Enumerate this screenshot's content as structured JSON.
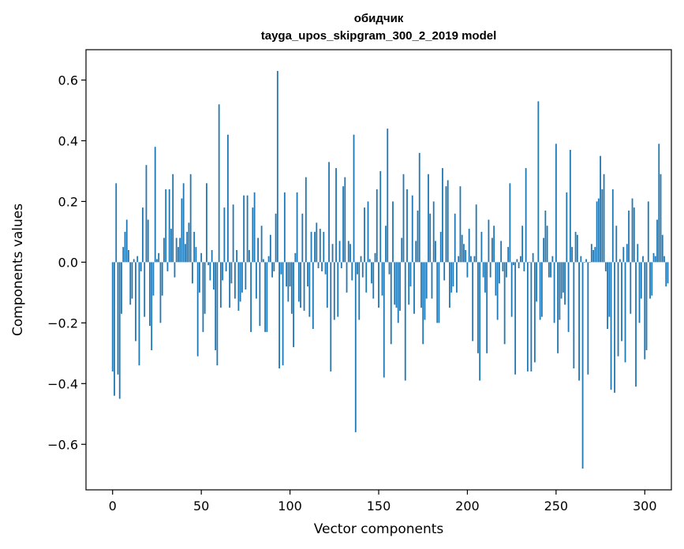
{
  "chart_data": {
    "type": "bar",
    "title": "обидчик",
    "subtitle": "tayga_upos_skipgram_300_2_2019 model",
    "xlabel": "Vector components",
    "ylabel": "Components values",
    "xlim": [
      -15,
      315
    ],
    "ylim": [
      -0.75,
      0.7
    ],
    "xticks": [
      0,
      50,
      100,
      150,
      200,
      250,
      300
    ],
    "xtick_labels": [
      "0",
      "50",
      "100",
      "150",
      "200",
      "250",
      "300"
    ],
    "yticks": [
      -0.6,
      -0.4,
      -0.2,
      0.0,
      0.2,
      0.4,
      0.6
    ],
    "ytick_labels": [
      "−0.6",
      "−0.4",
      "−0.2",
      "0.0",
      "0.2",
      "0.4",
      "0.6"
    ],
    "grid": false,
    "color": "#1f77b4",
    "x_start": 0,
    "values": [
      -0.36,
      -0.44,
      0.26,
      -0.37,
      -0.45,
      -0.17,
      0.05,
      0.1,
      0.14,
      0.04,
      -0.14,
      -0.12,
      0.01,
      -0.26,
      0.02,
      -0.34,
      -0.03,
      0.18,
      -0.18,
      0.32,
      0.14,
      -0.21,
      -0.29,
      -0.11,
      0.38,
      0.01,
      0.03,
      -0.2,
      -0.11,
      0.08,
      0.24,
      -0.03,
      0.24,
      0.11,
      0.29,
      -0.05,
      0.08,
      0.05,
      0.08,
      0.21,
      0.26,
      0.06,
      0.1,
      0.13,
      0.29,
      -0.07,
      0.1,
      0.05,
      -0.31,
      -0.1,
      0.03,
      -0.23,
      -0.17,
      0.26,
      -0.01,
      -0.06,
      0.04,
      -0.09,
      -0.29,
      -0.34,
      0.52,
      -0.15,
      -0.06,
      0.18,
      -0.03,
      0.42,
      -0.15,
      -0.07,
      0.19,
      -0.12,
      0.04,
      -0.16,
      -0.13,
      -0.1,
      0.22,
      -0.09,
      0.22,
      0.04,
      -0.23,
      0.18,
      0.23,
      -0.12,
      0.08,
      -0.21,
      0.12,
      0.01,
      -0.23,
      -0.23,
      0.02,
      0.09,
      -0.05,
      -0.03,
      0.16,
      0.63,
      -0.35,
      -0.04,
      -0.34,
      0.23,
      -0.08,
      -0.13,
      -0.08,
      -0.17,
      -0.28,
      0.03,
      0.23,
      -0.13,
      -0.15,
      0.16,
      -0.16,
      0.28,
      -0.08,
      -0.18,
      0.1,
      -0.22,
      0.1,
      0.13,
      -0.02,
      0.11,
      -0.03,
      0.1,
      -0.04,
      -0.15,
      0.33,
      -0.36,
      0.06,
      -0.19,
      0.31,
      -0.18,
      0.07,
      -0.02,
      0.25,
      0.28,
      -0.1,
      0.07,
      0.06,
      -0.06,
      0.42,
      -0.56,
      -0.04,
      -0.19,
      0.02,
      -0.05,
      0.18,
      -0.1,
      0.2,
      0.01,
      -0.07,
      -0.12,
      0.03,
      0.24,
      -0.15,
      0.3,
      -0.11,
      -0.38,
      0.12,
      0.44,
      -0.04,
      -0.27,
      0.2,
      -0.14,
      -0.15,
      -0.2,
      -0.16,
      0.08,
      0.29,
      -0.39,
      0.24,
      -0.14,
      -0.08,
      0.22,
      -0.17,
      0.07,
      0.17,
      0.36,
      -0.15,
      -0.27,
      -0.19,
      -0.12,
      0.29,
      0.16,
      -0.12,
      0.2,
      0.07,
      -0.2,
      -0.2,
      0.1,
      0.31,
      -0.06,
      0.25,
      0.27,
      -0.15,
      -0.1,
      -0.08,
      0.16,
      -0.1,
      0.02,
      0.25,
      0.09,
      0.06,
      0.04,
      -0.05,
      0.11,
      0.02,
      -0.26,
      0.02,
      0.19,
      -0.3,
      -0.39,
      0.1,
      -0.05,
      -0.1,
      -0.3,
      0.14,
      -0.05,
      0.08,
      0.12,
      -0.11,
      -0.19,
      -0.07,
      0.07,
      -0.03,
      -0.27,
      -0.05,
      0.05,
      0.26,
      -0.18,
      -0.01,
      -0.37,
      0.01,
      -0.02,
      0.02,
      0.12,
      -0.03,
      0.31,
      -0.36,
      0.0,
      -0.36,
      0.03,
      -0.33,
      -0.13,
      0.53,
      -0.19,
      -0.18,
      0.08,
      0.17,
      0.12,
      -0.05,
      -0.05,
      0.02,
      -0.2,
      0.39,
      -0.3,
      -0.19,
      -0.12,
      -0.1,
      -0.14,
      0.23,
      -0.23,
      0.37,
      0.05,
      -0.35,
      0.1,
      0.09,
      -0.39,
      0.02,
      -0.68,
      0.0,
      0.01,
      -0.37,
      0.0,
      0.06,
      0.04,
      0.05,
      0.2,
      0.21,
      0.35,
      0.24,
      0.29,
      -0.03,
      -0.22,
      -0.18,
      -0.42,
      0.24,
      -0.43,
      0.12,
      -0.31,
      0.01,
      -0.26,
      0.05,
      -0.33,
      0.06,
      0.17,
      -0.17,
      0.21,
      0.18,
      -0.41,
      0.06,
      -0.2,
      -0.12,
      0.02,
      -0.32,
      -0.29,
      0.2,
      -0.12,
      -0.11,
      0.03,
      0.02,
      0.14,
      0.39,
      0.29,
      0.09,
      0.02,
      -0.08,
      -0.07
    ]
  }
}
